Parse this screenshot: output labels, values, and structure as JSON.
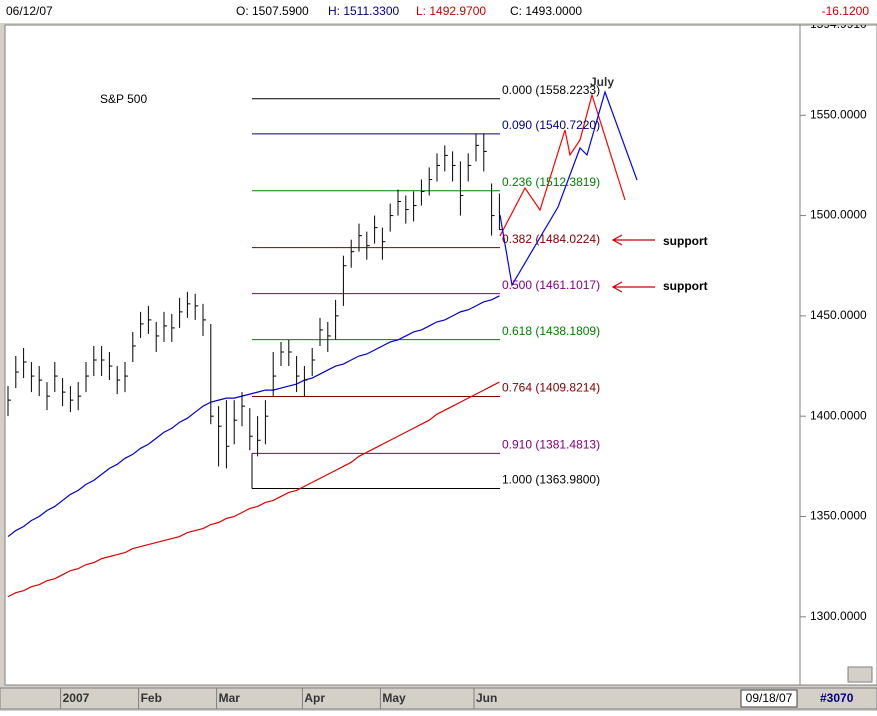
{
  "header": {
    "date": "06/12/07",
    "open": "O: 1507.5900",
    "high": "H: 1511.3300",
    "low": "L: 1492.9700",
    "close": "C: 1493.0000",
    "change": "-16.1200"
  },
  "footer": {
    "end_date": "09/18/07",
    "code": "#3070"
  },
  "chart_data": {
    "type": "ohlc",
    "title": "S&P 500",
    "annotations": {
      "month": "July",
      "support_1": "support",
      "support_2": "support"
    },
    "categories": [
      null,
      null,
      null,
      null,
      null,
      null,
      null,
      "2007",
      null,
      null,
      null,
      null,
      null,
      null,
      null,
      null,
      null,
      "Feb",
      null,
      null,
      null,
      null,
      null,
      null,
      null,
      null,
      null,
      "Mar",
      null,
      null,
      null,
      null,
      null,
      null,
      null,
      null,
      null,
      null,
      "Apr",
      null,
      null,
      null,
      null,
      null,
      null,
      null,
      null,
      null,
      "May",
      null,
      null,
      null,
      null,
      null,
      null,
      null,
      null,
      null,
      null,
      null,
      "Jun",
      null,
      null,
      null
    ],
    "price": {
      "color": "#000000",
      "highs": [
        1415,
        1430,
        1434,
        1427,
        1425,
        1417,
        1427,
        1419,
        1415,
        1417,
        1427,
        1435,
        1435,
        1432,
        1425,
        1427,
        1442,
        1452,
        1455,
        1447,
        1452,
        1451,
        1459,
        1462,
        1461,
        1456,
        1446,
        1405,
        1408,
        1408,
        1412,
        1404,
        1400,
        1408,
        1432,
        1437,
        1438,
        1430,
        1425,
        1434,
        1449,
        1447,
        1458,
        1480,
        1488,
        1496,
        1492,
        1500,
        1494,
        1506,
        1513,
        1510,
        1512,
        1518,
        1524,
        1531,
        1535,
        1532,
        1527,
        1531,
        1541,
        1541,
        1516,
        1511
      ],
      "lows": [
        1400,
        1414,
        1419,
        1412,
        1410,
        1403,
        1412,
        1405,
        1402,
        1403,
        1412,
        1420,
        1420,
        1418,
        1411,
        1412,
        1427,
        1439,
        1441,
        1432,
        1437,
        1437,
        1444,
        1449,
        1448,
        1440,
        1396,
        1375,
        1374,
        1386,
        1395,
        1383,
        1380,
        1386,
        1410,
        1425,
        1425,
        1412,
        1410,
        1420,
        1435,
        1432,
        1438,
        1455,
        1474,
        1482,
        1478,
        1486,
        1478,
        1492,
        1500,
        1496,
        1497,
        1505,
        1510,
        1517,
        1522,
        1517,
        1500,
        1517,
        1527,
        1522,
        1490,
        1493
      ],
      "closes": [
        1408,
        1422,
        1427,
        1420,
        1418,
        1410,
        1420,
        1412,
        1408,
        1410,
        1420,
        1428,
        1428,
        1425,
        1418,
        1420,
        1435,
        1446,
        1448,
        1440,
        1445,
        1444,
        1452,
        1456,
        1455,
        1448,
        1400,
        1395,
        1385,
        1398,
        1405,
        1390,
        1388,
        1400,
        1420,
        1432,
        1432,
        1420,
        1418,
        1428,
        1443,
        1440,
        1450,
        1475,
        1482,
        1490,
        1485,
        1494,
        1487,
        1500,
        1507,
        1503,
        1505,
        1512,
        1518,
        1525,
        1530,
        1525,
        1510,
        1525,
        1535,
        1532,
        1500,
        1493
      ]
    },
    "moving_averages": [
      {
        "color": "#0000cc",
        "values": [
          1340,
          1343,
          1345,
          1348,
          1350,
          1353,
          1355,
          1358,
          1361,
          1363,
          1366,
          1368,
          1371,
          1374,
          1376,
          1379,
          1381,
          1384,
          1386,
          1389,
          1392,
          1394,
          1397,
          1399,
          1402,
          1405,
          1407,
          1408,
          1409,
          1409,
          1410,
          1411,
          1412,
          1413,
          1413,
          1414,
          1415,
          1416,
          1418,
          1419,
          1421,
          1423,
          1425,
          1426,
          1428,
          1430,
          1431,
          1433,
          1435,
          1437,
          1438,
          1440,
          1442,
          1443,
          1445,
          1447,
          1448,
          1450,
          1452,
          1453,
          1455,
          1457,
          1458,
          1460
        ]
      },
      {
        "color": "#dd0000",
        "values": [
          1310,
          1312,
          1313,
          1315,
          1316,
          1318,
          1319,
          1321,
          1323,
          1324,
          1326,
          1327,
          1329,
          1330,
          1331,
          1332,
          1334,
          1335,
          1336,
          1337,
          1338,
          1339,
          1340,
          1342,
          1343,
          1344,
          1346,
          1347,
          1349,
          1350,
          1352,
          1354,
          1355,
          1357,
          1358,
          1360,
          1362,
          1363,
          1365,
          1367,
          1369,
          1371,
          1373,
          1375,
          1377,
          1380,
          1382,
          1384,
          1386,
          1388,
          1390,
          1392,
          1394,
          1396,
          1398,
          1401,
          1403,
          1405,
          1407,
          1409,
          1411,
          1413,
          1415,
          1417
        ]
      }
    ],
    "fib_levels": [
      {
        "label": "0.000 (1558.2233)",
        "value": 1558.2233,
        "color": "#000000"
      },
      {
        "label": "0.090 (1540.7220)",
        "value": 1540.722,
        "color": "#000080"
      },
      {
        "label": "0.236 (1512.3819)",
        "value": 1512.3819,
        "color": "#008000"
      },
      {
        "label": "0.382 (1484.0224)",
        "value": 1484.0224,
        "color": "#800000"
      },
      {
        "label": "0.500 (1461.1017)",
        "value": 1461.1017,
        "color": "#800080"
      },
      {
        "label": "0.618 (1438.1809)",
        "value": 1438.1809,
        "color": "#008000"
      },
      {
        "label": "0.764 (1409.8214)",
        "value": 1409.8214,
        "color": "#800000"
      },
      {
        "label": "0.910 (1381.4813)",
        "value": 1381.4813,
        "color": "#800080"
      },
      {
        "label": "1.000 (1363.9800)",
        "value": 1363.98,
        "color": "#000000"
      }
    ],
    "ylim": [
      1266,
      1595
    ],
    "yticks": [
      {
        "value": 1594.991,
        "label": "1594.9910"
      },
      {
        "value": 1550,
        "label": "1550.0000"
      },
      {
        "value": 1500,
        "label": "1500.0000"
      },
      {
        "value": 1450,
        "label": "1450.0000"
      },
      {
        "value": 1400,
        "label": "1400.0000"
      },
      {
        "value": 1350,
        "label": "1350.0000"
      },
      {
        "value": 1300,
        "label": "1300.0000"
      }
    ]
  }
}
